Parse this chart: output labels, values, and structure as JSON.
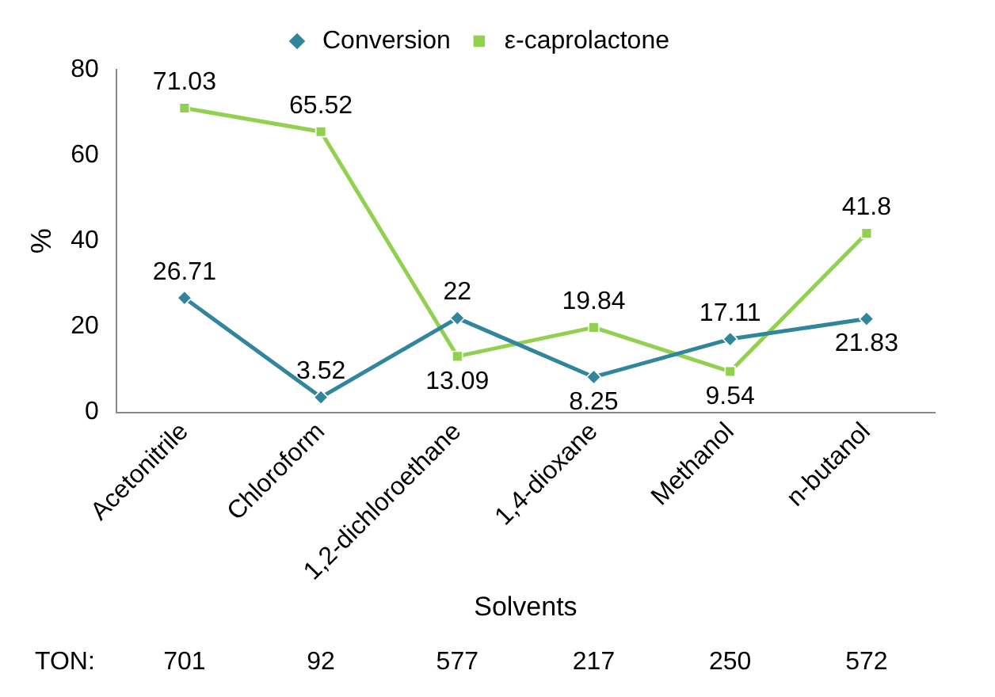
{
  "chart_data": {
    "type": "line",
    "xlabel": "Solvents",
    "ylabel": "%",
    "categories": [
      "Acetonitrile",
      "Chloroform",
      "1,2-dichloroethane",
      "1,4-dioxane",
      "Methanol",
      "n-butanol"
    ],
    "series": [
      {
        "name": "Conversion",
        "color": "#31859c",
        "marker": "diamond",
        "values": [
          26.71,
          3.52,
          22,
          8.25,
          17.11,
          21.83
        ]
      },
      {
        "name": "ε-caprolactone",
        "color": "#92d050",
        "marker": "square",
        "values": [
          71.03,
          65.52,
          13.09,
          19.84,
          9.54,
          41.8
        ]
      }
    ],
    "ylim": [
      0,
      80
    ],
    "yticks": [
      0,
      20,
      40,
      60,
      80
    ],
    "grid": false,
    "legend": "top",
    "data_labels": true,
    "annotations": [
      "TON:",
      "701",
      "92",
      "577",
      "217",
      "250",
      "572"
    ]
  }
}
